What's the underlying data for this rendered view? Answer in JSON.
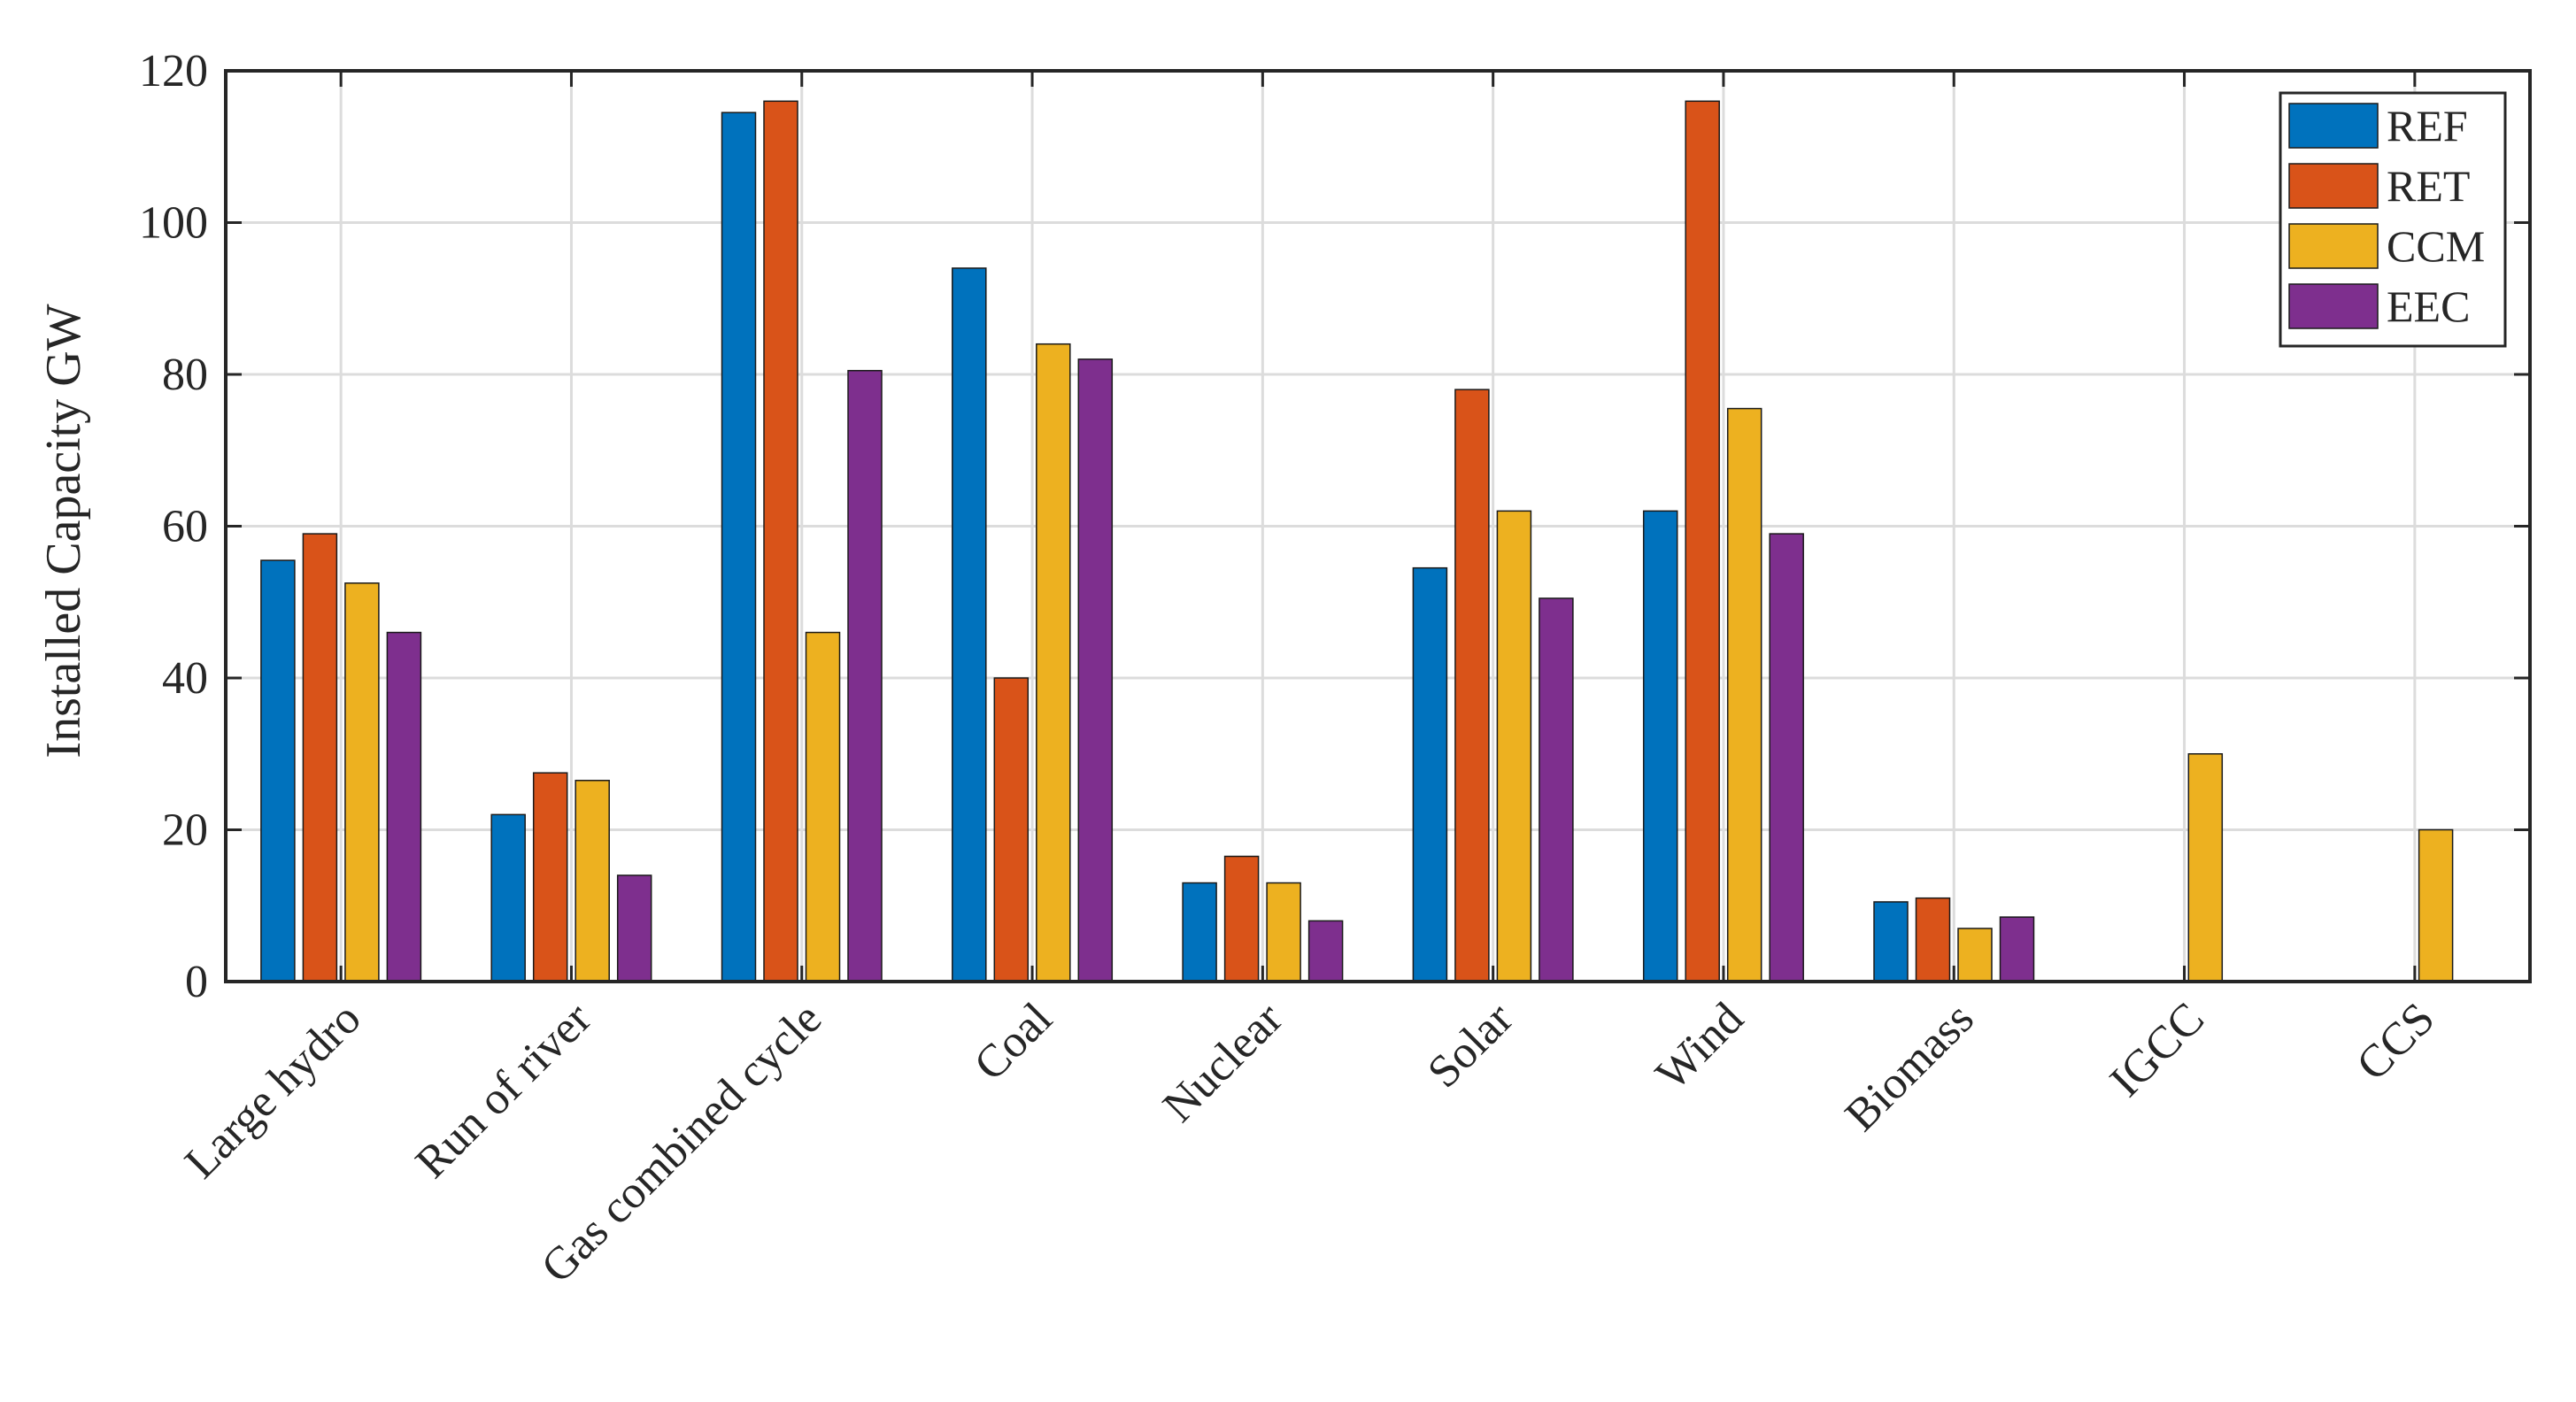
{
  "chart_data": {
    "type": "bar",
    "xlabel": "",
    "ylabel": "Installed Capacity GW",
    "ylim": [
      0,
      120
    ],
    "yticks": [
      0,
      20,
      40,
      60,
      80,
      100,
      120
    ],
    "grid": true,
    "legend_position": "top-right",
    "categories": [
      "Large hydro",
      "Run of river",
      "Gas combined cycle",
      "Coal",
      "Nuclear",
      "Solar",
      "Wind",
      "Biomass",
      "IGCC",
      "CCS"
    ],
    "series": [
      {
        "name": "REF",
        "color": "#0072BD",
        "values": [
          55.5,
          22,
          114.5,
          94,
          13,
          54.5,
          62,
          10.5,
          0,
          0
        ]
      },
      {
        "name": "RET",
        "color": "#D95319",
        "values": [
          59,
          27.5,
          116,
          40,
          16.5,
          78,
          116,
          11,
          0,
          0
        ]
      },
      {
        "name": "CCM",
        "color": "#EDB120",
        "values": [
          52.5,
          26.5,
          46,
          84,
          13,
          62,
          75.5,
          7,
          30,
          20
        ]
      },
      {
        "name": "EEC",
        "color": "#7E2F8E",
        "values": [
          46,
          14,
          80.5,
          82,
          8,
          50.5,
          59,
          8.5,
          0,
          0
        ]
      }
    ]
  }
}
